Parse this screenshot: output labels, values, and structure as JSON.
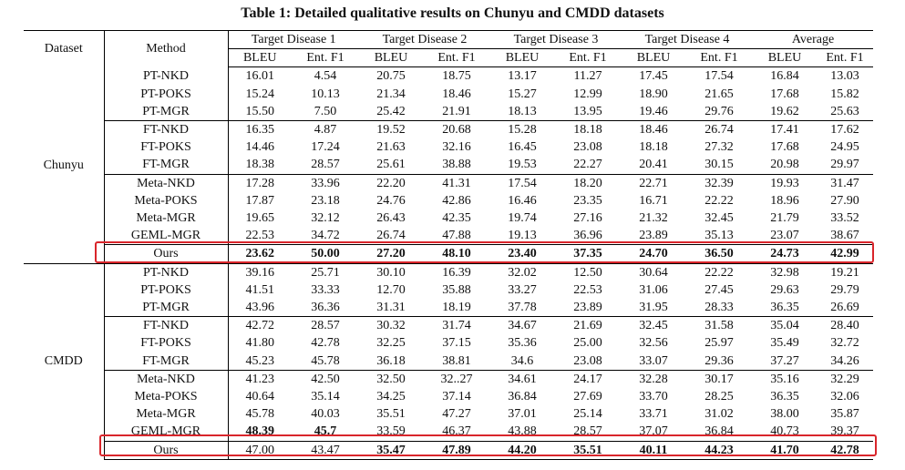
{
  "title": "Table 1: Detailed qualitative results on Chunyu and CMDD datasets",
  "headers": {
    "dataset": "Dataset",
    "method": "Method",
    "groups": [
      "Target Disease 1",
      "Target Disease 2",
      "Target Disease 3",
      "Target Disease 4",
      "Average"
    ],
    "metrics": [
      "BLEU",
      "Ent. F1",
      "BLEU",
      "Ent. F1",
      "BLEU",
      "Ent. F1",
      "BLEU",
      "Ent. F1",
      "BLEU",
      "Ent. F1"
    ]
  },
  "datasets": [
    {
      "name": "Chunyu",
      "rows": [
        {
          "method": "PT-NKD",
          "values": [
            "16.01",
            "4.54",
            "20.75",
            "18.75",
            "13.17",
            "11.27",
            "17.45",
            "17.54",
            "16.84",
            "13.03"
          ],
          "bold": []
        },
        {
          "method": "PT-POKS",
          "values": [
            "15.24",
            "10.13",
            "21.34",
            "18.46",
            "15.27",
            "12.99",
            "18.90",
            "21.65",
            "17.68",
            "15.82"
          ],
          "bold": []
        },
        {
          "method": "PT-MGR",
          "values": [
            "15.50",
            "7.50",
            "25.42",
            "21.91",
            "18.13",
            "13.95",
            "19.46",
            "29.76",
            "19.62",
            "25.63"
          ],
          "bold": []
        },
        {
          "method": "FT-NKD",
          "values": [
            "16.35",
            "4.87",
            "19.52",
            "20.68",
            "15.28",
            "18.18",
            "18.46",
            "26.74",
            "17.41",
            "17.62"
          ],
          "bold": []
        },
        {
          "method": "FT-POKS",
          "values": [
            "14.46",
            "17.24",
            "21.63",
            "32.16",
            "16.45",
            "23.08",
            "18.18",
            "27.32",
            "17.68",
            "24.95"
          ],
          "bold": []
        },
        {
          "method": "FT-MGR",
          "values": [
            "18.38",
            "28.57",
            "25.61",
            "38.88",
            "19.53",
            "22.27",
            "20.41",
            "30.15",
            "20.98",
            "29.97"
          ],
          "bold": []
        },
        {
          "method": "Meta-NKD",
          "values": [
            "17.28",
            "33.96",
            "22.20",
            "41.31",
            "17.54",
            "18.20",
            "22.71",
            "32.39",
            "19.93",
            "31.47"
          ],
          "bold": []
        },
        {
          "method": "Meta-POKS",
          "values": [
            "17.87",
            "23.18",
            "24.76",
            "42.86",
            "16.46",
            "23.35",
            "16.71",
            "22.22",
            "18.96",
            "27.90"
          ],
          "bold": []
        },
        {
          "method": "Meta-MGR",
          "values": [
            "19.65",
            "32.12",
            "26.43",
            "42.35",
            "19.74",
            "27.16",
            "21.32",
            "32.45",
            "21.79",
            "33.52"
          ],
          "bold": []
        },
        {
          "method": "GEML-MGR",
          "values": [
            "22.53",
            "34.72",
            "26.74",
            "47.88",
            "19.13",
            "36.96",
            "23.89",
            "35.13",
            "23.07",
            "38.67"
          ],
          "bold": []
        },
        {
          "method": "Ours",
          "values": [
            "23.62",
            "50.00",
            "27.20",
            "48.10",
            "23.40",
            "37.35",
            "24.70",
            "36.50",
            "24.73",
            "42.99"
          ],
          "bold": [
            0,
            1,
            2,
            3,
            4,
            5,
            6,
            7,
            8,
            9
          ]
        }
      ]
    },
    {
      "name": "CMDD",
      "rows": [
        {
          "method": "PT-NKD",
          "values": [
            "39.16",
            "25.71",
            "30.10",
            "16.39",
            "32.02",
            "12.50",
            "30.64",
            "22.22",
            "32.98",
            "19.21"
          ],
          "bold": []
        },
        {
          "method": "PT-POKS",
          "values": [
            "41.51",
            "33.33",
            "12.70",
            "35.88",
            "33.27",
            "22.53",
            "31.06",
            "27.45",
            "29.63",
            "29.79"
          ],
          "bold": []
        },
        {
          "method": "PT-MGR",
          "values": [
            "43.96",
            "36.36",
            "31.31",
            "18.19",
            "37.78",
            "23.89",
            "31.95",
            "28.33",
            "36.35",
            "26.69"
          ],
          "bold": []
        },
        {
          "method": "FT-NKD",
          "values": [
            "42.72",
            "28.57",
            "30.32",
            "31.74",
            "34.67",
            "21.69",
            "32.45",
            "31.58",
            "35.04",
            "28.40"
          ],
          "bold": []
        },
        {
          "method": "FT-POKS",
          "values": [
            "41.80",
            "42.78",
            "32.25",
            "37.15",
            "35.36",
            "25.00",
            "32.56",
            "25.97",
            "35.49",
            "32.72"
          ],
          "bold": []
        },
        {
          "method": "FT-MGR",
          "values": [
            "45.23",
            "45.78",
            "36.18",
            "38.81",
            "34.6",
            "23.08",
            "33.07",
            "29.36",
            "37.27",
            "34.26"
          ],
          "bold": []
        },
        {
          "method": "Meta-NKD",
          "values": [
            "41.23",
            "42.50",
            "32.50",
            "32..27",
            "34.61",
            "24.17",
            "32.28",
            "30.17",
            "35.16",
            "32.29"
          ],
          "bold": []
        },
        {
          "method": "Meta-POKS",
          "values": [
            "40.64",
            "35.14",
            "34.25",
            "37.14",
            "36.84",
            "27.69",
            "33.70",
            "28.25",
            "36.35",
            "32.06"
          ],
          "bold": []
        },
        {
          "method": "Meta-MGR",
          "values": [
            "45.78",
            "40.03",
            "35.51",
            "47.27",
            "37.01",
            "25.14",
            "33.71",
            "31.02",
            "38.00",
            "35.87"
          ],
          "bold": []
        },
        {
          "method": "GEML-MGR",
          "values": [
            "48.39",
            "45.7",
            "33.59",
            "46.37",
            "43.88",
            "28.57",
            "37.07",
            "36.84",
            "40.73",
            "39.37"
          ],
          "bold": [
            0,
            1
          ]
        },
        {
          "method": "Ours",
          "values": [
            "47.00",
            "43.47",
            "35.47",
            "47.89",
            "44.20",
            "35.51",
            "40.11",
            "44.23",
            "41.70",
            "42.78"
          ],
          "bold": [
            2,
            3,
            4,
            5,
            6,
            7,
            8,
            9
          ]
        }
      ]
    }
  ]
}
